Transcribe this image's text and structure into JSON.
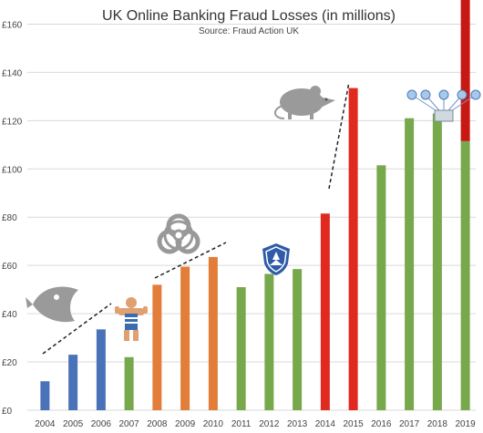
{
  "chart_data": {
    "type": "bar",
    "title": "UK Online Banking Fraud Losses (in millions)",
    "subtitle": "Source: Fraud Action UK",
    "xlabel": "",
    "ylabel": "",
    "ylim": [
      0,
      170
    ],
    "y_ticks": [
      "£0",
      "£20",
      "£40",
      "£60",
      "£80",
      "£100",
      "£120",
      "£140",
      "£160"
    ],
    "y_tick_values": [
      0,
      20,
      40,
      60,
      80,
      100,
      120,
      140,
      160
    ],
    "grid": true,
    "categories": [
      "2004",
      "2005",
      "2006",
      "2007",
      "2008",
      "2009",
      "2010",
      "2011",
      "2012",
      "2013",
      "2014",
      "2015",
      "2016",
      "2017",
      "2018",
      "2019"
    ],
    "values": [
      12,
      23,
      33.5,
      22,
      52,
      59.5,
      63.5,
      51,
      56.5,
      58.5,
      81.5,
      133.5,
      101.5,
      121,
      123,
      111.5
    ],
    "stacked_extra": [
      0,
      0,
      0,
      0,
      0,
      0,
      0,
      0,
      0,
      0,
      0,
      0,
      0,
      0,
      0,
      72
    ],
    "bar_colors": [
      "#4a72b8",
      "#4a72b8",
      "#4a72b8",
      "#78a84c",
      "#e27d3a",
      "#e27d3a",
      "#e27d3a",
      "#78a84c",
      "#78a84c",
      "#78a84c",
      "#e02a1f",
      "#e02a1f",
      "#78a84c",
      "#78a84c",
      "#78a84c",
      "#78a84c"
    ],
    "stacked_extra_color": "#c81814",
    "icons": [
      "fish-icon",
      "bodybuilder-icon",
      "biohazard-icon",
      "shield-badge-icon",
      "rat-icon",
      "network-diagram-icon"
    ]
  }
}
